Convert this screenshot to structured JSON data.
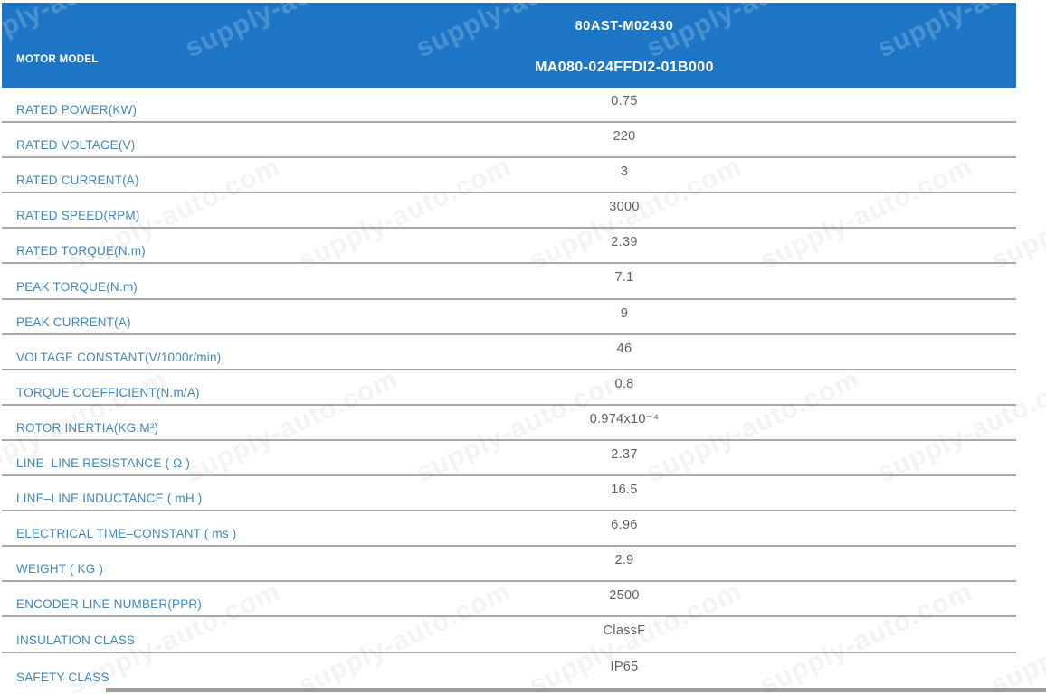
{
  "watermark": {
    "text": "supply-auto.com"
  },
  "header": {
    "column_label": "MOTOR MODEL",
    "model_series": "80AST-M02430",
    "model_number": "MA080-024FFDI2-01B000"
  },
  "colors": {
    "header_blue": "#1d76c5",
    "label_blue": "#3e86bf",
    "value_gray": "#5f5f5f",
    "border_gray": "#a8a8a8"
  },
  "rows": [
    {
      "label": "RATED POWER(KW)",
      "value": "0.75"
    },
    {
      "label": "RATED VOLTAGE(V)",
      "value": "220"
    },
    {
      "label": "RATED CURRENT(A)",
      "value": "3"
    },
    {
      "label": "RATED SPEED(RPM)",
      "value": "3000"
    },
    {
      "label": "RATED TORQUE(N.m)",
      "value": "2.39"
    },
    {
      "label": "PEAK TORQUE(N.m)",
      "value": "7.1"
    },
    {
      "label": "PEAK CURRENT(A)",
      "value": "9"
    },
    {
      "label": "VOLTAGE CONSTANT(V/1000r/min)",
      "value": "46"
    },
    {
      "label": "TORQUE COEFFICIENT(N.m/A)",
      "value": "0.8"
    },
    {
      "label": "ROTOR INERTIA(KG.M²)",
      "value": "0.974x10⁻⁴"
    },
    {
      "label": "LINE–LINE RESISTANCE ( Ω )",
      "value": "2.37"
    },
    {
      "label": "LINE–LINE INDUCTANCE ( mH )",
      "value": "16.5"
    },
    {
      "label": "ELECTRICAL TIME–CONSTANT ( ms )",
      "value": "6.96"
    },
    {
      "label": "WEIGHT ( KG )",
      "value": "2.9"
    },
    {
      "label": "ENCODER LINE NUMBER(PPR)",
      "value": "2500"
    },
    {
      "label": "INSULATION CLASS",
      "value": "ClassF"
    },
    {
      "label": "SAFETY CLASS",
      "value": "IP65"
    }
  ]
}
